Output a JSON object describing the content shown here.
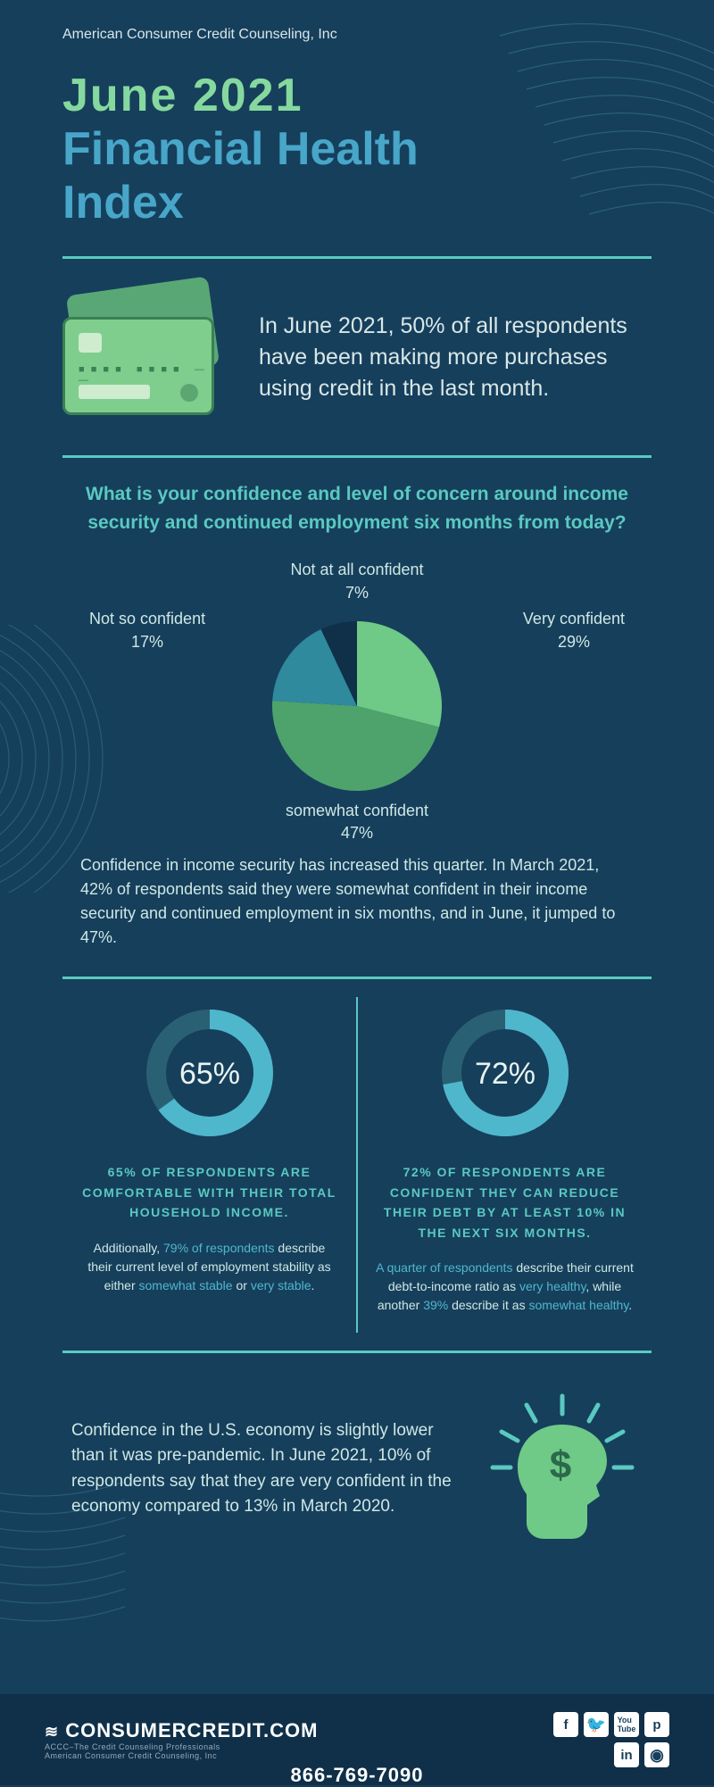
{
  "org": "American Consumer Credit Counseling, Inc",
  "title": {
    "line1": "June  2021",
    "line2": "Financial Health",
    "line3": "Index"
  },
  "colors": {
    "bg": "#163f5c",
    "accent_teal": "#5ac9c0",
    "accent_blue": "#48a6c9",
    "accent_green": "#86d99e",
    "text": "#cfe8e3"
  },
  "intro_text": "In June 2021, 50% of all respondents have been making more purchases using credit in the last month.",
  "question": "What is your confidence and level of concern around income security and continued employment six months from today?",
  "pie": {
    "type": "pie",
    "radius": 95,
    "slices": [
      {
        "label": "Very confident",
        "pct": 29,
        "pct_label": "29%",
        "color": "#6fc987"
      },
      {
        "label": "somewhat confident",
        "pct": 47,
        "pct_label": "47%",
        "color": "#4da36b"
      },
      {
        "label": "Not so confident",
        "pct": 17,
        "pct_label": "17%",
        "color": "#2f8a9e"
      },
      {
        "label": "Not at all confident",
        "pct": 7,
        "pct_label": "7%",
        "color": "#0f3048"
      }
    ]
  },
  "pie_body": "Confidence in income security has increased this quarter. In March 2021, 42% of respondents said they were somewhat confident in their income security and continued employment in six months, and in June, it jumped to 47%.",
  "donuts": {
    "left": {
      "pct": 65,
      "pct_label": "65%",
      "ring_fg": "#4fb7cc",
      "ring_bg": "#2a6073",
      "heading": "65% OF RESPONDENTS ARE COMFORTABLE WITH THEIR TOTAL HOUSEHOLD INCOME.",
      "sub_pre": "Additionally, ",
      "sub_accent1": "79% of respondents",
      "sub_mid": " describe their current level of employment stability as either ",
      "sub_accent2": "somewhat stable",
      "sub_or": " or ",
      "sub_accent3": "very stable",
      "sub_end": "."
    },
    "right": {
      "pct": 72,
      "pct_label": "72%",
      "ring_fg": "#4fb7cc",
      "ring_bg": "#2a6073",
      "heading": "72% OF RESPONDENTS ARE CONFIDENT THEY CAN REDUCE THEIR DEBT BY AT LEAST 10% IN THE NEXT SIX MONTHS.",
      "sub_accent1": "A quarter of respondents",
      "sub_mid1": " describe their current debt-to-income ratio as ",
      "sub_accent2": "very healthy",
      "sub_mid2": ", while another ",
      "sub_accent3": "39%",
      "sub_mid3": " describe it as ",
      "sub_accent4": "somewhat healthy",
      "sub_end": "."
    }
  },
  "economy_text": "Confidence in the U.S. economy is slightly lower than it was pre-pandemic. In June 2021, 10% of respondents say that they are very confident in the economy compared to 13% in March 2020.",
  "footer": {
    "logo_main": "CONSUMERCREDIT.COM",
    "logo_sub": "ACCC–The Credit Counseling Professionals",
    "logo_sub2": "American Consumer Credit Counseling, Inc",
    "phone": "866-769-7090",
    "social": [
      "f",
      "t",
      "yt",
      "p",
      "in",
      "ig"
    ]
  }
}
